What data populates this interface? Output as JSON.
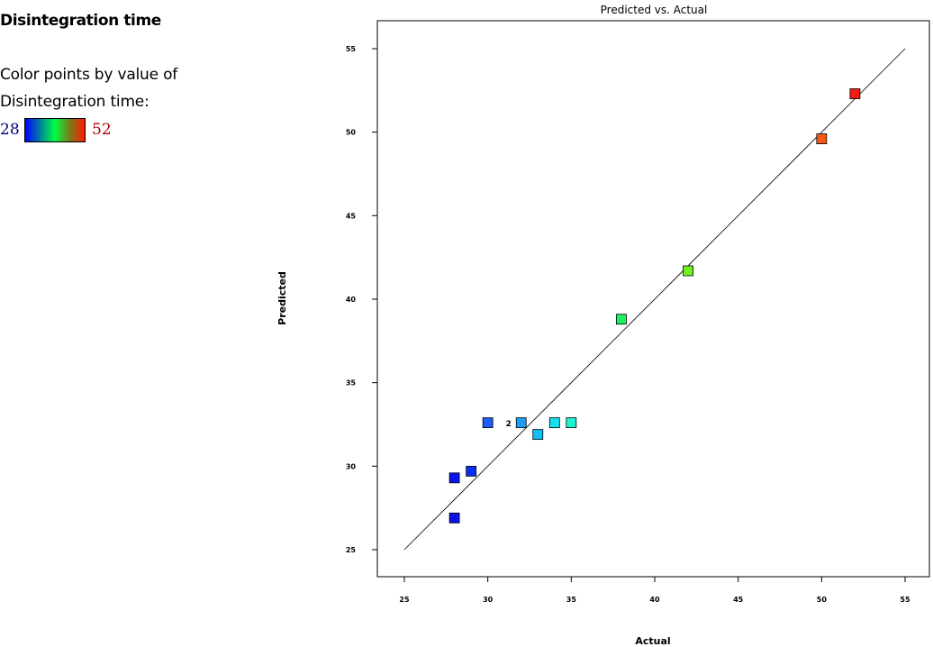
{
  "sidebar": {
    "title": "Disintegration time",
    "color_caption_line1": "Color points by value of",
    "color_caption_line2": "Disintegration time:",
    "legend_min": "28",
    "legend_max": "52",
    "gradient_colors": [
      "#0000ff",
      "#00ff40",
      "#7a7a1a",
      "#ff1a00"
    ]
  },
  "chart_data": {
    "type": "scatter",
    "title": "Predicted vs. Actual",
    "xlabel": "Actual",
    "ylabel": "Predicted",
    "xlim": [
      25,
      55
    ],
    "ylim": [
      25,
      55
    ],
    "xticks": [
      25,
      30,
      35,
      40,
      45,
      50,
      55
    ],
    "yticks": [
      25,
      30,
      35,
      40,
      45,
      50,
      55
    ],
    "reference_line": [
      [
        25,
        25
      ],
      [
        55,
        55
      ]
    ],
    "color_range": [
      28,
      52
    ],
    "grid": false,
    "points": [
      {
        "x": 28,
        "y": 26.9,
        "color": "#0a10e8"
      },
      {
        "x": 28,
        "y": 29.3,
        "color": "#0a14f0"
      },
      {
        "x": 29,
        "y": 29.7,
        "color": "#0a2ef5"
      },
      {
        "x": 30,
        "y": 32.6,
        "color": "#1a5cf5"
      },
      {
        "x": 32,
        "y": 32.6,
        "color": "#1a9ef5",
        "label": "2"
      },
      {
        "x": 33,
        "y": 31.9,
        "color": "#12bef5"
      },
      {
        "x": 34,
        "y": 32.6,
        "color": "#12e0f0"
      },
      {
        "x": 35,
        "y": 32.6,
        "color": "#1ef0d2"
      },
      {
        "x": 38,
        "y": 38.8,
        "color": "#1ef060"
      },
      {
        "x": 42,
        "y": 41.7,
        "color": "#6ef01e"
      },
      {
        "x": 50,
        "y": 49.6,
        "color": "#f55a12"
      },
      {
        "x": 52,
        "y": 52.3,
        "color": "#f51a12"
      }
    ]
  }
}
